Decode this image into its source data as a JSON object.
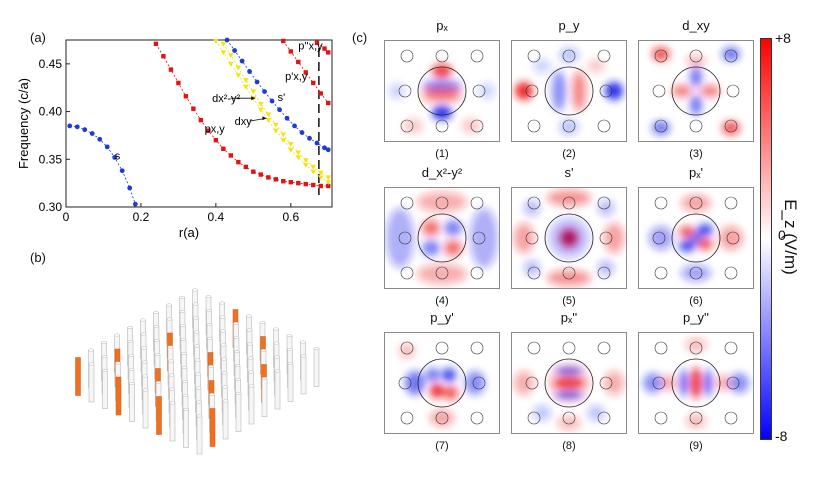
{
  "labels": {
    "a": "(a)",
    "b": "(b)",
    "c": "(c)"
  },
  "chart_data": {
    "type": "line",
    "xlabel": "r(a)",
    "ylabel": "Frequency (c/a)",
    "xlim": [
      0,
      0.71
    ],
    "ylim": [
      0.3,
      0.475
    ],
    "xticks": [
      "0",
      "0.2",
      "0.4",
      "0.6"
    ],
    "yticks": [
      "0.30",
      "0.35",
      "0.40",
      "0.45"
    ],
    "dashed_line_x": 0.675,
    "series": [
      {
        "name": "s",
        "color": "#1f3bd6",
        "points": [
          [
            0.01,
            0.385
          ],
          [
            0.03,
            0.384
          ],
          [
            0.05,
            0.381
          ],
          [
            0.07,
            0.377
          ],
          [
            0.09,
            0.371
          ],
          [
            0.11,
            0.363
          ],
          [
            0.13,
            0.352
          ],
          [
            0.15,
            0.338
          ],
          [
            0.17,
            0.32
          ],
          [
            0.185,
            0.303
          ]
        ]
      },
      {
        "name": "px,y",
        "color": "#e01414",
        "points": [
          [
            0.24,
            0.471
          ],
          [
            0.26,
            0.458
          ],
          [
            0.28,
            0.444
          ],
          [
            0.3,
            0.43
          ],
          [
            0.32,
            0.416
          ],
          [
            0.34,
            0.403
          ],
          [
            0.36,
            0.391
          ],
          [
            0.38,
            0.38
          ],
          [
            0.4,
            0.37
          ],
          [
            0.42,
            0.361
          ],
          [
            0.44,
            0.354
          ],
          [
            0.46,
            0.347
          ],
          [
            0.48,
            0.342
          ],
          [
            0.5,
            0.337
          ],
          [
            0.52,
            0.334
          ],
          [
            0.54,
            0.331
          ],
          [
            0.56,
            0.329
          ],
          [
            0.58,
            0.327
          ],
          [
            0.6,
            0.326
          ],
          [
            0.62,
            0.325
          ],
          [
            0.64,
            0.324
          ],
          [
            0.66,
            0.323
          ],
          [
            0.68,
            0.322
          ],
          [
            0.7,
            0.322
          ]
        ]
      },
      {
        "name": "dx2-y2",
        "color": "#f2e40e",
        "points": [
          [
            0.42,
            0.471
          ],
          [
            0.44,
            0.459
          ],
          [
            0.46,
            0.446
          ],
          [
            0.48,
            0.433
          ],
          [
            0.5,
            0.421
          ],
          [
            0.52,
            0.408
          ],
          [
            0.54,
            0.397
          ],
          [
            0.56,
            0.386
          ],
          [
            0.58,
            0.376
          ],
          [
            0.6,
            0.366
          ],
          [
            0.62,
            0.357
          ],
          [
            0.64,
            0.349
          ],
          [
            0.66,
            0.342
          ],
          [
            0.68,
            0.336
          ],
          [
            0.7,
            0.331
          ]
        ]
      },
      {
        "name": "dxy",
        "color": "#f2e40e",
        "points": [
          [
            0.4,
            0.474
          ],
          [
            0.42,
            0.462
          ],
          [
            0.44,
            0.45
          ],
          [
            0.46,
            0.438
          ],
          [
            0.48,
            0.426
          ],
          [
            0.5,
            0.414
          ],
          [
            0.52,
            0.402
          ],
          [
            0.54,
            0.391
          ],
          [
            0.56,
            0.38
          ],
          [
            0.58,
            0.37
          ],
          [
            0.6,
            0.36
          ],
          [
            0.62,
            0.352
          ],
          [
            0.64,
            0.344
          ],
          [
            0.66,
            0.337
          ],
          [
            0.68,
            0.331
          ],
          [
            0.7,
            0.326
          ]
        ]
      },
      {
        "name": "s'",
        "color": "#1f3bd6",
        "points": [
          [
            0.43,
            0.475
          ],
          [
            0.45,
            0.464
          ],
          [
            0.47,
            0.453
          ],
          [
            0.49,
            0.442
          ],
          [
            0.51,
            0.431
          ],
          [
            0.53,
            0.421
          ],
          [
            0.55,
            0.411
          ],
          [
            0.57,
            0.402
          ],
          [
            0.59,
            0.393
          ],
          [
            0.61,
            0.385
          ],
          [
            0.63,
            0.378
          ],
          [
            0.65,
            0.372
          ],
          [
            0.67,
            0.367
          ],
          [
            0.69,
            0.362
          ],
          [
            0.7,
            0.36
          ]
        ]
      },
      {
        "name": "p'x,y",
        "color": "#e01414",
        "points": [
          [
            0.58,
            0.474
          ],
          [
            0.6,
            0.463
          ],
          [
            0.62,
            0.452
          ],
          [
            0.64,
            0.441
          ],
          [
            0.66,
            0.43
          ],
          [
            0.68,
            0.419
          ],
          [
            0.7,
            0.409
          ]
        ]
      },
      {
        "name": "p''x,y",
        "color": "#e01414",
        "points": [
          [
            0.67,
            0.472
          ],
          [
            0.69,
            0.466
          ],
          [
            0.7,
            0.462
          ]
        ]
      }
    ],
    "annotations": [
      {
        "text": "s",
        "x": 0.13,
        "y": 0.35
      },
      {
        "text": "px,y",
        "x": 0.37,
        "y": 0.378
      },
      {
        "text": "dx²-y²",
        "x": 0.39,
        "y": 0.41
      },
      {
        "text": "dxy",
        "x": 0.45,
        "y": 0.386
      },
      {
        "text": "s'",
        "x": 0.565,
        "y": 0.411
      },
      {
        "text": "p'x,y",
        "x": 0.585,
        "y": 0.433
      },
      {
        "text": "p''x,y",
        "x": 0.62,
        "y": 0.465
      }
    ]
  },
  "field_maps": {
    "tiles": [
      {
        "title": "pₓ",
        "index": "(1)"
      },
      {
        "title": "p_y",
        "index": "(2)"
      },
      {
        "title": "d_xy",
        "index": "(3)"
      },
      {
        "title": "d_x²-y²",
        "index": "(4)"
      },
      {
        "title": "s'",
        "index": "(5)"
      },
      {
        "title": "pₓ'",
        "index": "(6)"
      },
      {
        "title": "p_y'",
        "index": "(7)"
      },
      {
        "title": "pₓ''",
        "index": "(8)"
      },
      {
        "title": "p_y''",
        "index": "(9)"
      }
    ],
    "colorbar": {
      "max": "+8",
      "mid": "0",
      "min": "-8",
      "label": "E_z (V/m)"
    }
  },
  "colors": {
    "red": "#e01414",
    "blue": "#1f3bd6",
    "yellow": "#f2e40e",
    "orange": "#f07020"
  }
}
